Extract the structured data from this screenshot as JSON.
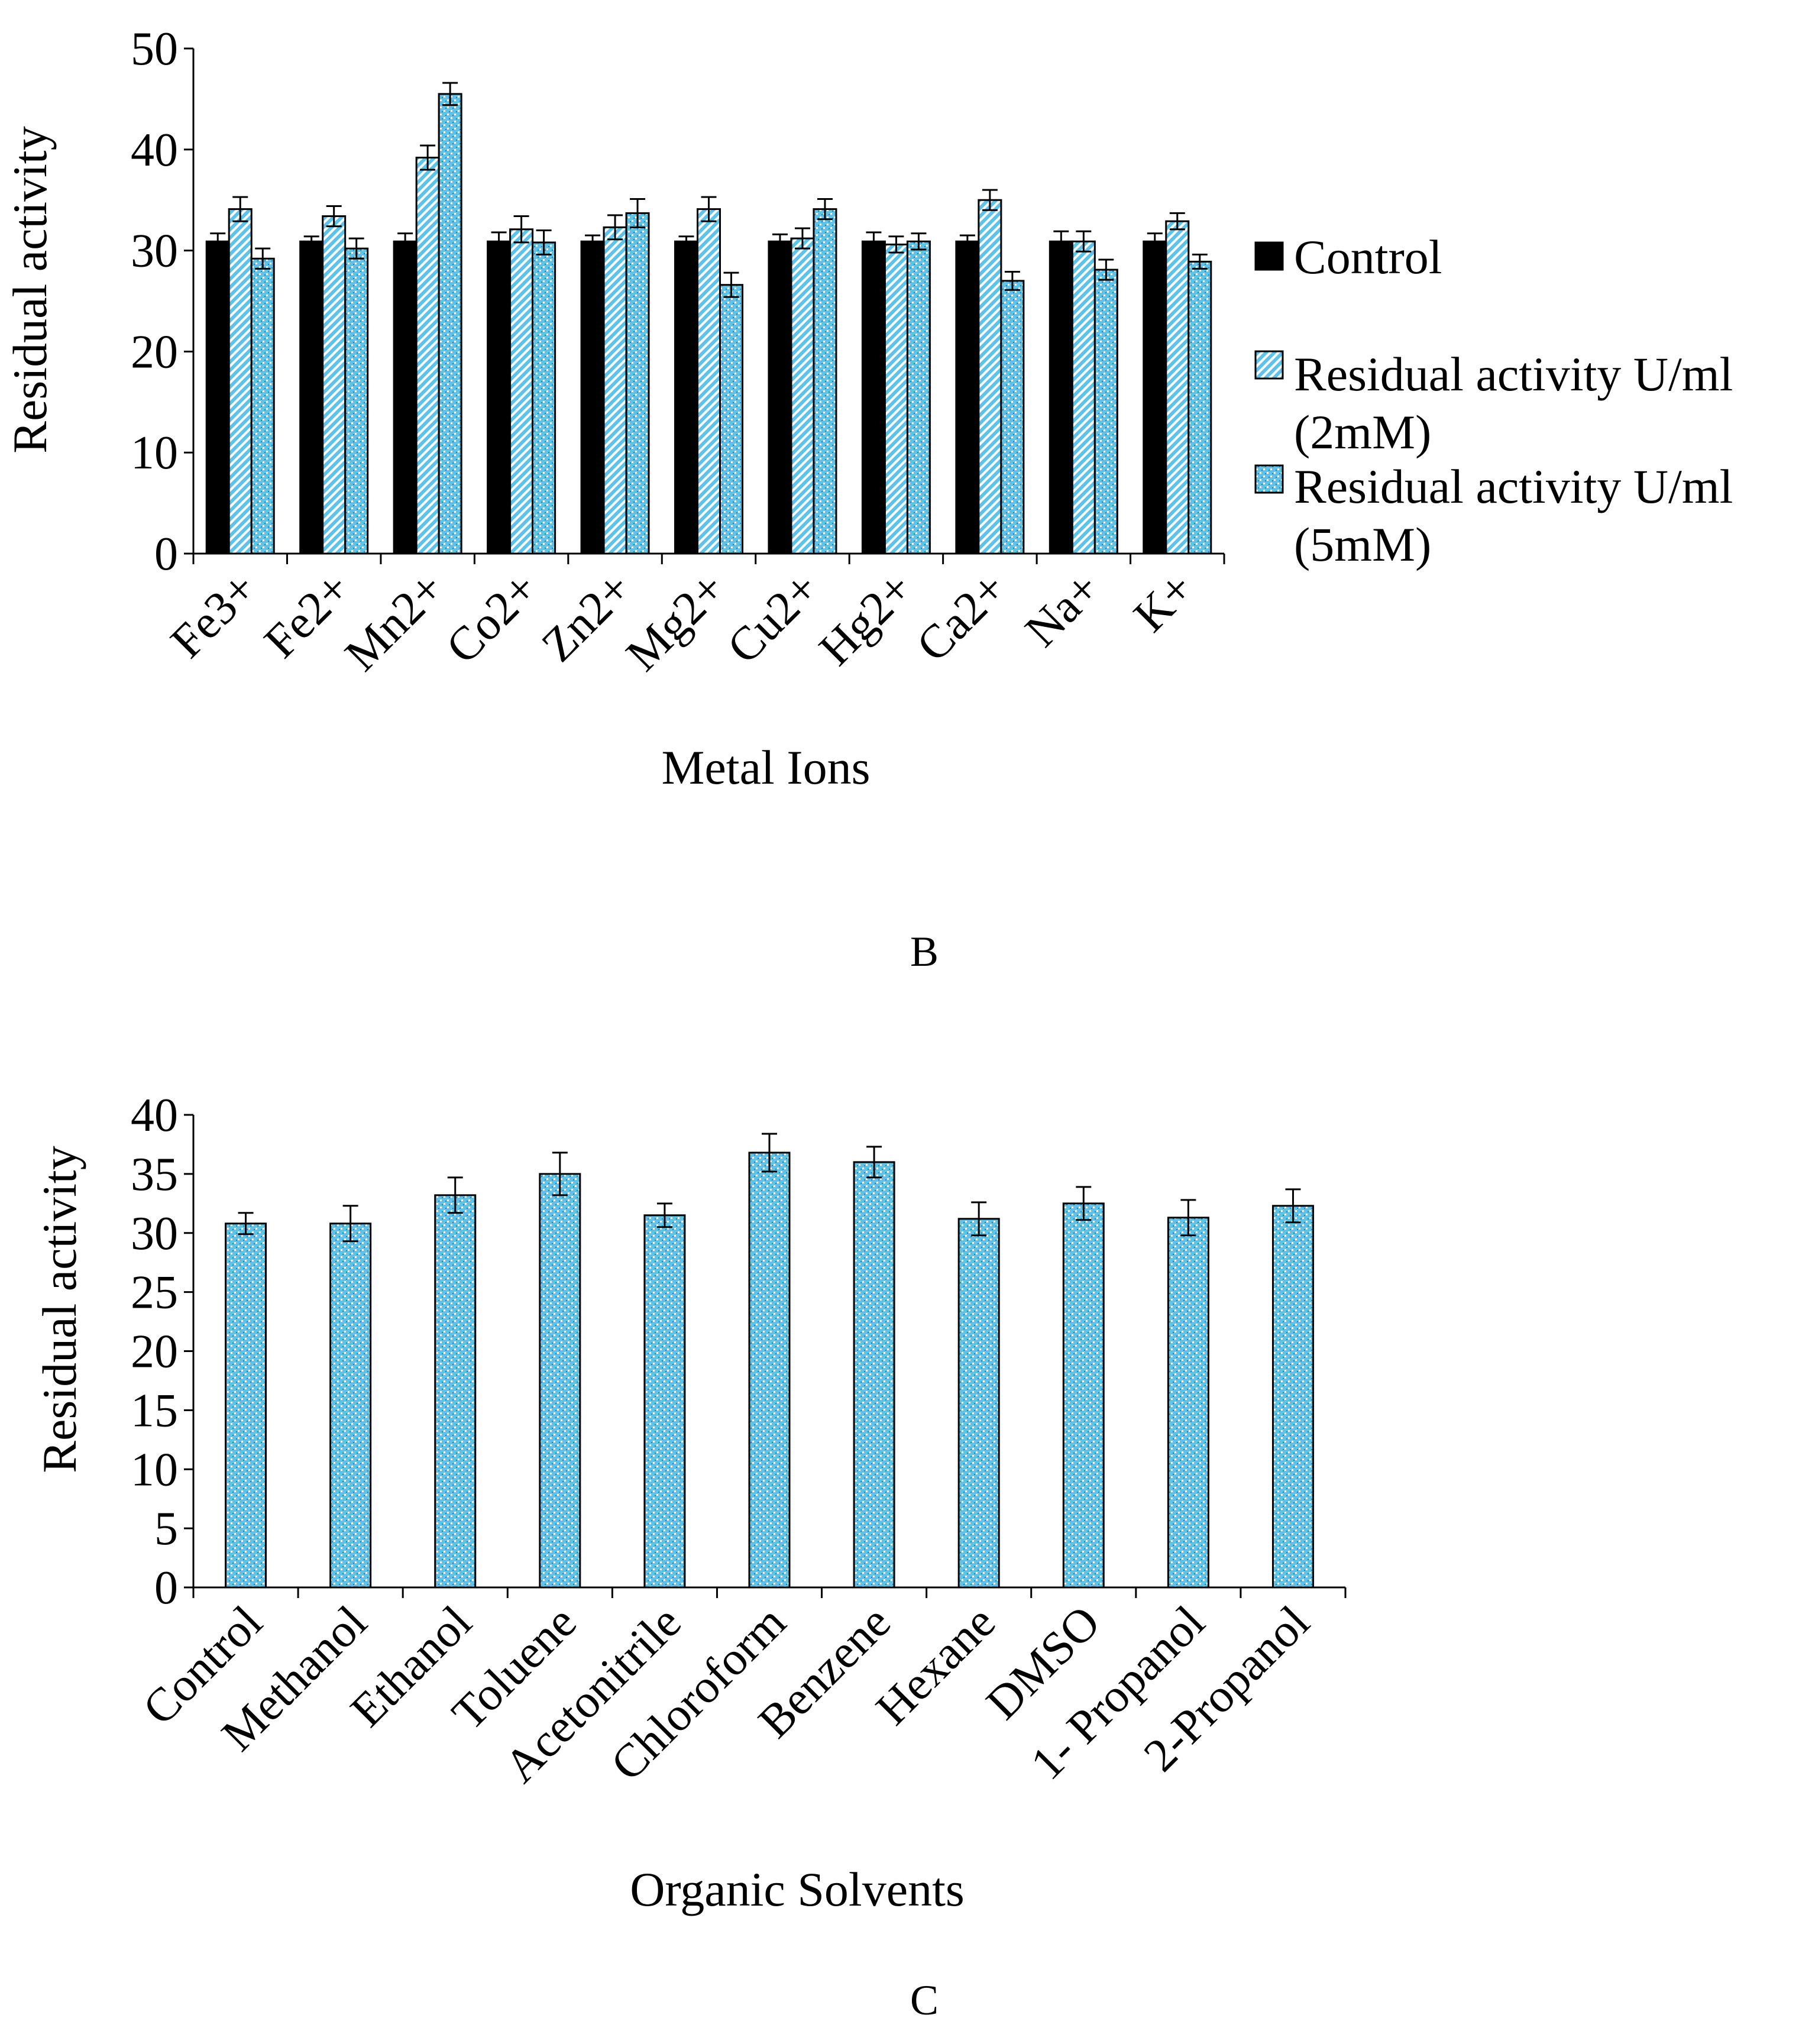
{
  "panels": {
    "b_label": "B",
    "c_label": "C"
  },
  "colors": {
    "control": "#000000",
    "treatment_fill": "#5ec3e6",
    "treatment_dark": "#1f5f8b",
    "axis": "#000000"
  },
  "chart_data": [
    {
      "type": "bar",
      "panel": "B",
      "xlabel": "Metal Ions",
      "ylabel": "Residual activity",
      "ylim": [
        0,
        50
      ],
      "yticks": [
        0,
        10,
        20,
        30,
        40,
        50
      ],
      "grid": false,
      "legend_position": "right",
      "categories": [
        "Fe3+",
        "Fe2+",
        "Mn2+",
        "Co2+",
        "Zn2+",
        "Mg2+",
        "Cu2+",
        "Hg2+",
        "Ca2+",
        "Na+",
        "K+"
      ],
      "series": [
        {
          "name": "Control",
          "pattern": "solid",
          "values": [
            30.9,
            30.9,
            30.9,
            30.9,
            30.9,
            30.9,
            30.9,
            30.9,
            30.9,
            30.9,
            30.9
          ],
          "errors": [
            0.8,
            0.5,
            0.8,
            0.9,
            0.6,
            0.5,
            0.7,
            0.9,
            0.6,
            1.0,
            0.8
          ]
        },
        {
          "name": "Residual activity U/ml (2mM)",
          "legend_lines": [
            "Residual activity U/ml",
            "(2mM)"
          ],
          "pattern": "diagonal",
          "values": [
            34.1,
            33.4,
            39.2,
            32.1,
            32.3,
            34.1,
            31.2,
            30.6,
            35.0,
            30.9,
            32.9
          ],
          "errors": [
            1.2,
            1.0,
            1.2,
            1.3,
            1.2,
            1.2,
            1.0,
            0.8,
            1.0,
            1.0,
            0.8
          ]
        },
        {
          "name": "Residual activity U/ml (5mM)",
          "legend_lines": [
            "Residual activity U/ml",
            "(5mM)"
          ],
          "pattern": "dotted",
          "values": [
            29.2,
            30.2,
            45.5,
            30.8,
            33.7,
            26.6,
            34.1,
            30.9,
            27.0,
            28.1,
            28.9
          ],
          "errors": [
            1.0,
            1.0,
            1.1,
            1.2,
            1.4,
            1.2,
            1.0,
            0.8,
            0.9,
            1.0,
            0.7
          ]
        }
      ]
    },
    {
      "type": "bar",
      "panel": "C",
      "xlabel": "Organic Solvents",
      "ylabel": "Residual activity",
      "ylim": [
        0,
        40
      ],
      "yticks": [
        0,
        5,
        10,
        15,
        20,
        25,
        30,
        35,
        40
      ],
      "grid": false,
      "categories": [
        "Control",
        "Methanol",
        "Ethanol",
        "Toluene",
        "Acetonitrile",
        "Chloroform",
        "Benzene",
        "Hexane",
        "DMSO",
        "1- Propanol",
        "2-Propanol"
      ],
      "series": [
        {
          "pattern": "dotted",
          "values": [
            30.8,
            30.8,
            33.2,
            35.0,
            31.5,
            36.8,
            36.0,
            31.2,
            32.5,
            31.3,
            32.3
          ],
          "errors": [
            0.9,
            1.5,
            1.5,
            1.8,
            1.0,
            1.6,
            1.3,
            1.4,
            1.4,
            1.5,
            1.4
          ]
        }
      ]
    }
  ]
}
